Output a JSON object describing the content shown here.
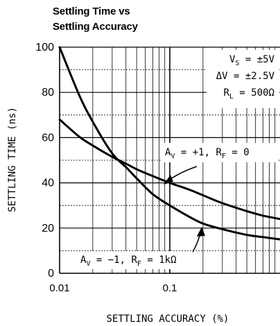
{
  "chart_data": {
    "type": "line",
    "title_lines": [
      "Settling Time vs",
      "Settling Accuracy"
    ],
    "xlabel": "SETTLING ACCURACY (%)",
    "ylabel": "SETTLING TIME (ns)",
    "xscale": "log",
    "xlim": [
      0.01,
      1
    ],
    "ylim": [
      0,
      100
    ],
    "x_ticks": [
      {
        "value": 0.01,
        "label": "0.01"
      },
      {
        "value": 0.1,
        "label": "0.1"
      }
    ],
    "y_ticks": [
      {
        "value": 0,
        "label": "0"
      },
      {
        "value": 20,
        "label": "20"
      },
      {
        "value": 40,
        "label": "40"
      },
      {
        "value": 60,
        "label": "60"
      },
      {
        "value": 80,
        "label": "80"
      },
      {
        "value": 100,
        "label": "100"
      }
    ],
    "grid": true,
    "conditions": [
      {
        "sym": "V",
        "sub": "S",
        "rest": " = ±5V"
      },
      {
        "sym": "ΔV",
        "sub": "",
        "rest": " = ±2.5V"
      },
      {
        "sym": "R",
        "sub": "L",
        "rest": " = 500Ω"
      }
    ],
    "series": [
      {
        "annotation": {
          "p1": "A",
          "s1": "V",
          "t1": " = −1, ",
          "p2": "R",
          "s2": "F",
          "t2": " = 1kΩ"
        },
        "points": [
          [
            0.01,
            100
          ],
          [
            0.015,
            79
          ],
          [
            0.02,
            67
          ],
          [
            0.03,
            53
          ],
          [
            0.04,
            47
          ],
          [
            0.05,
            42
          ],
          [
            0.07,
            35
          ],
          [
            0.1,
            30
          ],
          [
            0.15,
            25
          ],
          [
            0.2,
            22
          ],
          [
            0.3,
            19.5
          ],
          [
            0.5,
            17
          ],
          [
            0.7,
            16
          ],
          [
            1,
            15
          ]
        ]
      },
      {
        "annotation": {
          "p1": "A",
          "s1": "V",
          "t1": " = +1, ",
          "p2": "R",
          "s2": "F",
          "t2": " = 0"
        },
        "points": [
          [
            0.01,
            68
          ],
          [
            0.015,
            60.5
          ],
          [
            0.02,
            56.5
          ],
          [
            0.03,
            51.5
          ],
          [
            0.04,
            48.5
          ],
          [
            0.05,
            46
          ],
          [
            0.07,
            43
          ],
          [
            0.1,
            40
          ],
          [
            0.15,
            37
          ],
          [
            0.2,
            34.5
          ],
          [
            0.3,
            31
          ],
          [
            0.5,
            27.5
          ],
          [
            0.7,
            25.5
          ],
          [
            1,
            24
          ]
        ]
      }
    ]
  }
}
